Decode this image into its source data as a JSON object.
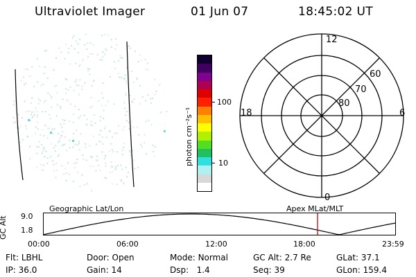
{
  "header": {
    "title": "Ultraviolet Imager",
    "date": "01 Jun 07",
    "time": "18:45:02 UT"
  },
  "colorbar": {
    "unit_label": "photon cm⁻²s⁻¹",
    "tick_100": "100",
    "tick_10": "10",
    "colors": [
      "#ffffff",
      "#d8d8d8",
      "#b0f0f0",
      "#30e0e0",
      "#20c060",
      "#50e020",
      "#b0f000",
      "#ffff00",
      "#ffc000",
      "#ff8000",
      "#ff2000",
      "#e00000",
      "#b00050",
      "#800090",
      "#400060",
      "#100030"
    ]
  },
  "polar": {
    "mlt_labels": {
      "top": "12",
      "left": "18",
      "right": "6",
      "bottom": "0"
    },
    "lat_labels": [
      "60",
      "70",
      "80"
    ]
  },
  "orbit": {
    "y_label": "GC Alt",
    "y_ticks": [
      "9.0",
      "1.8"
    ],
    "left_title": "Geographic Lat/Lon",
    "right_title": "Apex MLat/MLT",
    "x_ticks": [
      "00:00",
      "06:00",
      "12:00",
      "18:00",
      "23:59"
    ],
    "current_marker_color": "#cc0000"
  },
  "status": {
    "row1": [
      {
        "label": "Flt:",
        "value": "LBHL"
      },
      {
        "label": "Door:",
        "value": "Open"
      },
      {
        "label": "Mode:",
        "value": "Normal"
      },
      {
        "label": "GC Alt:",
        "value": "2.7 Re"
      },
      {
        "label": "GLat:",
        "value": "37.1"
      }
    ],
    "row2": [
      {
        "label": "IP:",
        "value": "36.0"
      },
      {
        "label": "Gain:",
        "value": "14"
      },
      {
        "label": "Dsp:",
        "value": "1.4"
      },
      {
        "label": "Seq:",
        "value": "39"
      },
      {
        "label": "GLon:",
        "value": "159.4"
      }
    ]
  }
}
